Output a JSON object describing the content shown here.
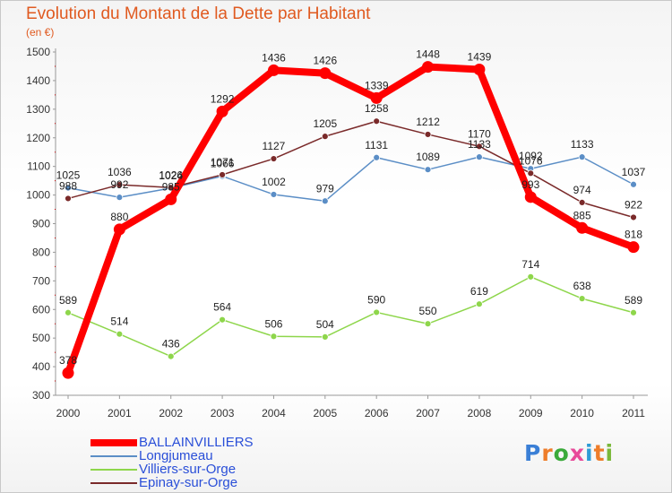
{
  "header": {
    "title": "Evolution du Montant de la Dette par Habitant",
    "unit": "(en €)"
  },
  "logo": {
    "letters": [
      "P",
      "r",
      "o",
      "x",
      "i",
      "t",
      "i"
    ],
    "colors": [
      "#3a7fd6",
      "#ee7d2a",
      "#3aaa3a",
      "#e84a9a",
      "#2e9cd6",
      "#ee7d2a",
      "#7ab83a"
    ]
  },
  "chart_data": {
    "type": "line",
    "title": "Evolution du Montant de la Dette par Habitant",
    "ylabel": "(en €)",
    "xlabel": "",
    "categories": [
      "2000",
      "2001",
      "2002",
      "2003",
      "2004",
      "2005",
      "2006",
      "2007",
      "2008",
      "2009",
      "2010",
      "2011"
    ],
    "ylim": [
      300,
      1500
    ],
    "yticks": [
      300,
      400,
      500,
      600,
      700,
      800,
      900,
      1000,
      1100,
      1200,
      1300,
      1400,
      1500
    ],
    "grid": false,
    "legend": "bottom-left",
    "series": [
      {
        "name": "BALLAINVILLIERS",
        "color": "#ff0000",
        "values": [
          378,
          880,
          985,
          1292,
          1436,
          1426,
          1339,
          1448,
          1439,
          993,
          885,
          818
        ],
        "labels": [
          "378",
          "880",
          "985",
          "1292",
          "1436",
          "1426",
          "1339",
          "1448",
          "1439",
          "993",
          "885",
          "818"
        ]
      },
      {
        "name": "Longjumeau",
        "color": "#5b8ec6",
        "values": [
          1025,
          992,
          1024,
          1066,
          1002,
          979,
          1131,
          1089,
          1133,
          1092,
          1133,
          1037
        ],
        "labels": [
          "1025",
          "992",
          "1024",
          "1066",
          "1002",
          "979",
          "1131",
          "1089",
          "1133",
          "1092",
          "1133",
          "1037"
        ]
      },
      {
        "name": "Villiers-sur-Orge",
        "color": "#8ed64b",
        "values": [
          589,
          514,
          436,
          564,
          506,
          504,
          590,
          550,
          619,
          714,
          638,
          589
        ],
        "labels": [
          "589",
          "514",
          "436",
          "564",
          "506",
          "504",
          "590",
          "550",
          "619",
          "714",
          "638",
          "589"
        ]
      },
      {
        "name": "Epinay-sur-Orge",
        "color": "#7a2a2a",
        "values": [
          988,
          1036,
          1026,
          1071,
          1127,
          1205,
          1258,
          1212,
          1170,
          1076,
          974,
          922
        ],
        "labels": [
          "988",
          "1036",
          "1026",
          "1071",
          "1127",
          "1205",
          "1258",
          "1212",
          "1170",
          "1076",
          "974",
          "922"
        ]
      }
    ]
  }
}
